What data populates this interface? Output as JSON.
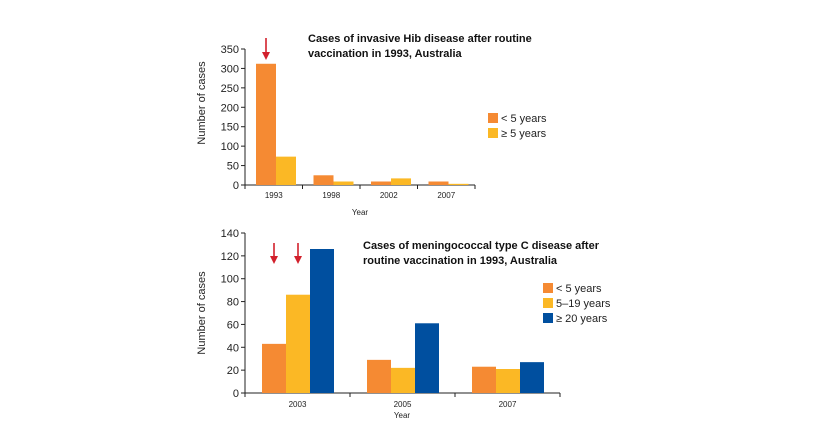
{
  "chart_data": [
    {
      "type": "bar",
      "title": "Cases of invasive Hib disease after routine vaccination in 1993, Australia",
      "xlabel": "Year",
      "ylabel": "Number of cases",
      "ylim": [
        0,
        350
      ],
      "yticks": [
        "0",
        "50",
        "100",
        "150",
        "200",
        "250",
        "300",
        "350"
      ],
      "categories": [
        "1993",
        "1998",
        "2002",
        "2007"
      ],
      "series": [
        {
          "name": "< 5 years",
          "color": "#f58a33",
          "values": [
            312,
            25,
            9,
            9
          ]
        },
        {
          "name": "≥ 5 years",
          "color": "#fbb825",
          "values": [
            73,
            9,
            17,
            3
          ]
        }
      ],
      "arrows": [
        "1993: < 5 years"
      ],
      "legend_position": "right",
      "grid": false
    },
    {
      "type": "bar",
      "title": "Cases of meningococcal type C disease after routine vaccination in 1993, Australia",
      "xlabel": "Year",
      "ylabel": "Number of cases",
      "ylim": [
        0,
        140
      ],
      "yticks": [
        "0",
        "20",
        "40",
        "60",
        "80",
        "100",
        "120",
        "140"
      ],
      "categories": [
        "2003",
        "2005",
        "2007"
      ],
      "series": [
        {
          "name": "< 5 years",
          "color": "#f58a33",
          "values": [
            43,
            29,
            23
          ]
        },
        {
          "name": "5–19 years",
          "color": "#fbb825",
          "values": [
            86,
            22,
            21
          ]
        },
        {
          "name": "≥ 20 years",
          "color": "#004f9f",
          "values": [
            126,
            61,
            27
          ]
        }
      ],
      "arrows": [
        "2003: < 5 years",
        "2003: 5–19 years"
      ],
      "legend_position": "right",
      "grid": false
    }
  ],
  "arrow_color": "#d2202c"
}
